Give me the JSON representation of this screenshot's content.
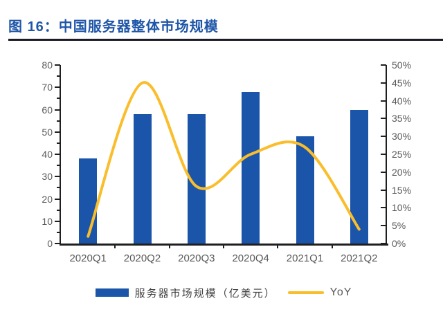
{
  "header": {
    "title": "图 16：中国服务器整体市场规模"
  },
  "legend": {
    "bar_label": "服务器市场规模（亿美元）",
    "line_label": "YoY"
  },
  "colors": {
    "title_blue": "#1F56A8",
    "bar_blue": "#1B55A9",
    "line_yellow": "#FABD2B",
    "axis_dark": "#1f1f1f",
    "label_gray": "#595959",
    "divider_dark": "#1c1c28"
  },
  "chart_data": {
    "type": "bar",
    "combo": "bar+smooth-line",
    "title": "中国服务器整体市场规模",
    "categories": [
      "2020Q1",
      "2020Q2",
      "2020Q3",
      "2020Q4",
      "2021Q1",
      "2021Q2"
    ],
    "series": [
      {
        "name": "服务器市场规模（亿美元）",
        "type": "bar",
        "axis": "left",
        "color": "#1B55A9",
        "values": [
          38,
          58,
          58,
          68,
          48,
          60
        ]
      },
      {
        "name": "YoY",
        "type": "line-smooth",
        "axis": "right",
        "color": "#FABD2B",
        "unit": "%",
        "values": [
          2,
          45,
          16,
          25,
          27,
          4
        ]
      }
    ],
    "left_axis": {
      "min": 0,
      "max": 80,
      "major_step": 10,
      "minor_step": 5,
      "tick_labels": [
        "0",
        "10",
        "20",
        "30",
        "40",
        "50",
        "60",
        "70",
        "80"
      ]
    },
    "right_axis": {
      "min": 0,
      "max": 50,
      "major_step": 5,
      "tick_labels": [
        "0%",
        "5%",
        "10%",
        "15%",
        "20%",
        "25%",
        "30%",
        "35%",
        "40%",
        "45%",
        "50%"
      ]
    },
    "gridlines": false,
    "legend_position": "bottom"
  }
}
